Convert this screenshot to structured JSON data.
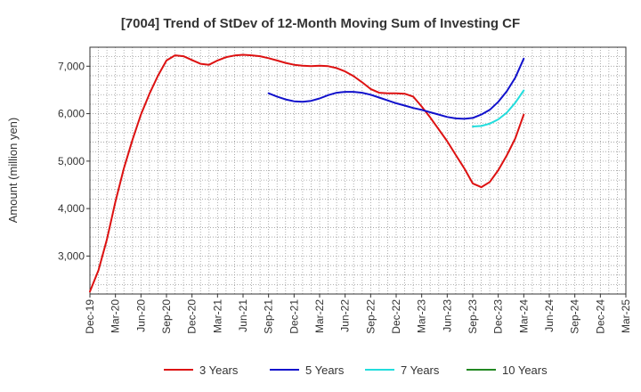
{
  "chart_data": {
    "type": "line",
    "title": "[7004]  Trend of StDev of 12-Month Moving Sum of Investing CF",
    "ylabel": "Amount (million yen)",
    "xlabel": "",
    "x_ticks": [
      "Dec-19",
      "Mar-20",
      "Jun-20",
      "Sep-20",
      "Dec-20",
      "Mar-21",
      "Jun-21",
      "Sep-21",
      "Dec-21",
      "Mar-22",
      "Jun-22",
      "Sep-22",
      "Dec-22",
      "Mar-23",
      "Jun-23",
      "Sep-23",
      "Dec-23",
      "Mar-24",
      "Jun-24",
      "Sep-24",
      "Dec-24",
      "Mar-25"
    ],
    "y_ticks": [
      3000,
      4000,
      5000,
      6000,
      7000
    ],
    "y_tick_labels": [
      "3,000",
      "4,000",
      "5,000",
      "6,000",
      "7,000"
    ],
    "ylim": [
      2200,
      7400
    ],
    "xlim": [
      "2019-12",
      "2025-03"
    ],
    "grid": true,
    "legend_position": "bottom",
    "series": [
      {
        "name": "3 Years",
        "color": "#dd1111",
        "x": [
          "2019-12",
          "2020-01",
          "2020-02",
          "2020-03",
          "2020-04",
          "2020-05",
          "2020-06",
          "2020-07",
          "2020-08",
          "2020-09",
          "2020-10",
          "2020-11",
          "2020-12",
          "2021-01",
          "2021-02",
          "2021-03",
          "2021-04",
          "2021-05",
          "2021-06",
          "2021-07",
          "2021-08",
          "2021-09",
          "2021-10",
          "2021-11",
          "2021-12",
          "2022-01",
          "2022-02",
          "2022-03",
          "2022-04",
          "2022-05",
          "2022-06",
          "2022-07",
          "2022-08",
          "2022-09",
          "2022-10",
          "2022-11",
          "2022-12",
          "2023-01",
          "2023-02",
          "2023-03",
          "2023-04",
          "2023-05",
          "2023-06",
          "2023-07",
          "2023-08",
          "2023-09",
          "2023-10",
          "2023-11",
          "2023-12",
          "2024-01",
          "2024-02",
          "2024-03"
        ],
        "values": [
          2250,
          2700,
          3350,
          4150,
          4850,
          5450,
          5980,
          6420,
          6800,
          7120,
          7230,
          7210,
          7130,
          7050,
          7030,
          7120,
          7190,
          7225,
          7240,
          7230,
          7210,
          7170,
          7120,
          7070,
          7030,
          7010,
          7000,
          7010,
          7000,
          6960,
          6890,
          6790,
          6660,
          6520,
          6440,
          6430,
          6430,
          6420,
          6360,
          6150,
          5920,
          5670,
          5420,
          5130,
          4850,
          4530,
          4450,
          4560,
          4810,
          5120,
          5480,
          5980
        ]
      },
      {
        "name": "5 Years",
        "color": "#1111cc",
        "x": [
          "2021-09",
          "2021-10",
          "2021-11",
          "2021-12",
          "2022-01",
          "2022-02",
          "2022-03",
          "2022-04",
          "2022-05",
          "2022-06",
          "2022-07",
          "2022-08",
          "2022-09",
          "2022-10",
          "2022-11",
          "2022-12",
          "2023-01",
          "2023-02",
          "2023-03",
          "2023-04",
          "2023-05",
          "2023-06",
          "2023-07",
          "2023-08",
          "2023-09",
          "2023-10",
          "2023-11",
          "2023-12",
          "2024-01",
          "2024-02",
          "2024-03"
        ],
        "values": [
          6430,
          6360,
          6300,
          6260,
          6250,
          6270,
          6320,
          6390,
          6440,
          6460,
          6460,
          6440,
          6400,
          6340,
          6280,
          6220,
          6170,
          6120,
          6080,
          6030,
          5980,
          5930,
          5900,
          5890,
          5910,
          5980,
          6080,
          6250,
          6470,
          6760,
          7160
        ]
      },
      {
        "name": "7 Years",
        "color": "#22dddd",
        "x": [
          "2023-09",
          "2023-10",
          "2023-11",
          "2023-12",
          "2024-01",
          "2024-02",
          "2024-03"
        ],
        "values": [
          5730,
          5740,
          5790,
          5880,
          6020,
          6230,
          6490
        ]
      },
      {
        "name": "10 Years",
        "color": "#228822",
        "x": [],
        "values": []
      }
    ]
  }
}
